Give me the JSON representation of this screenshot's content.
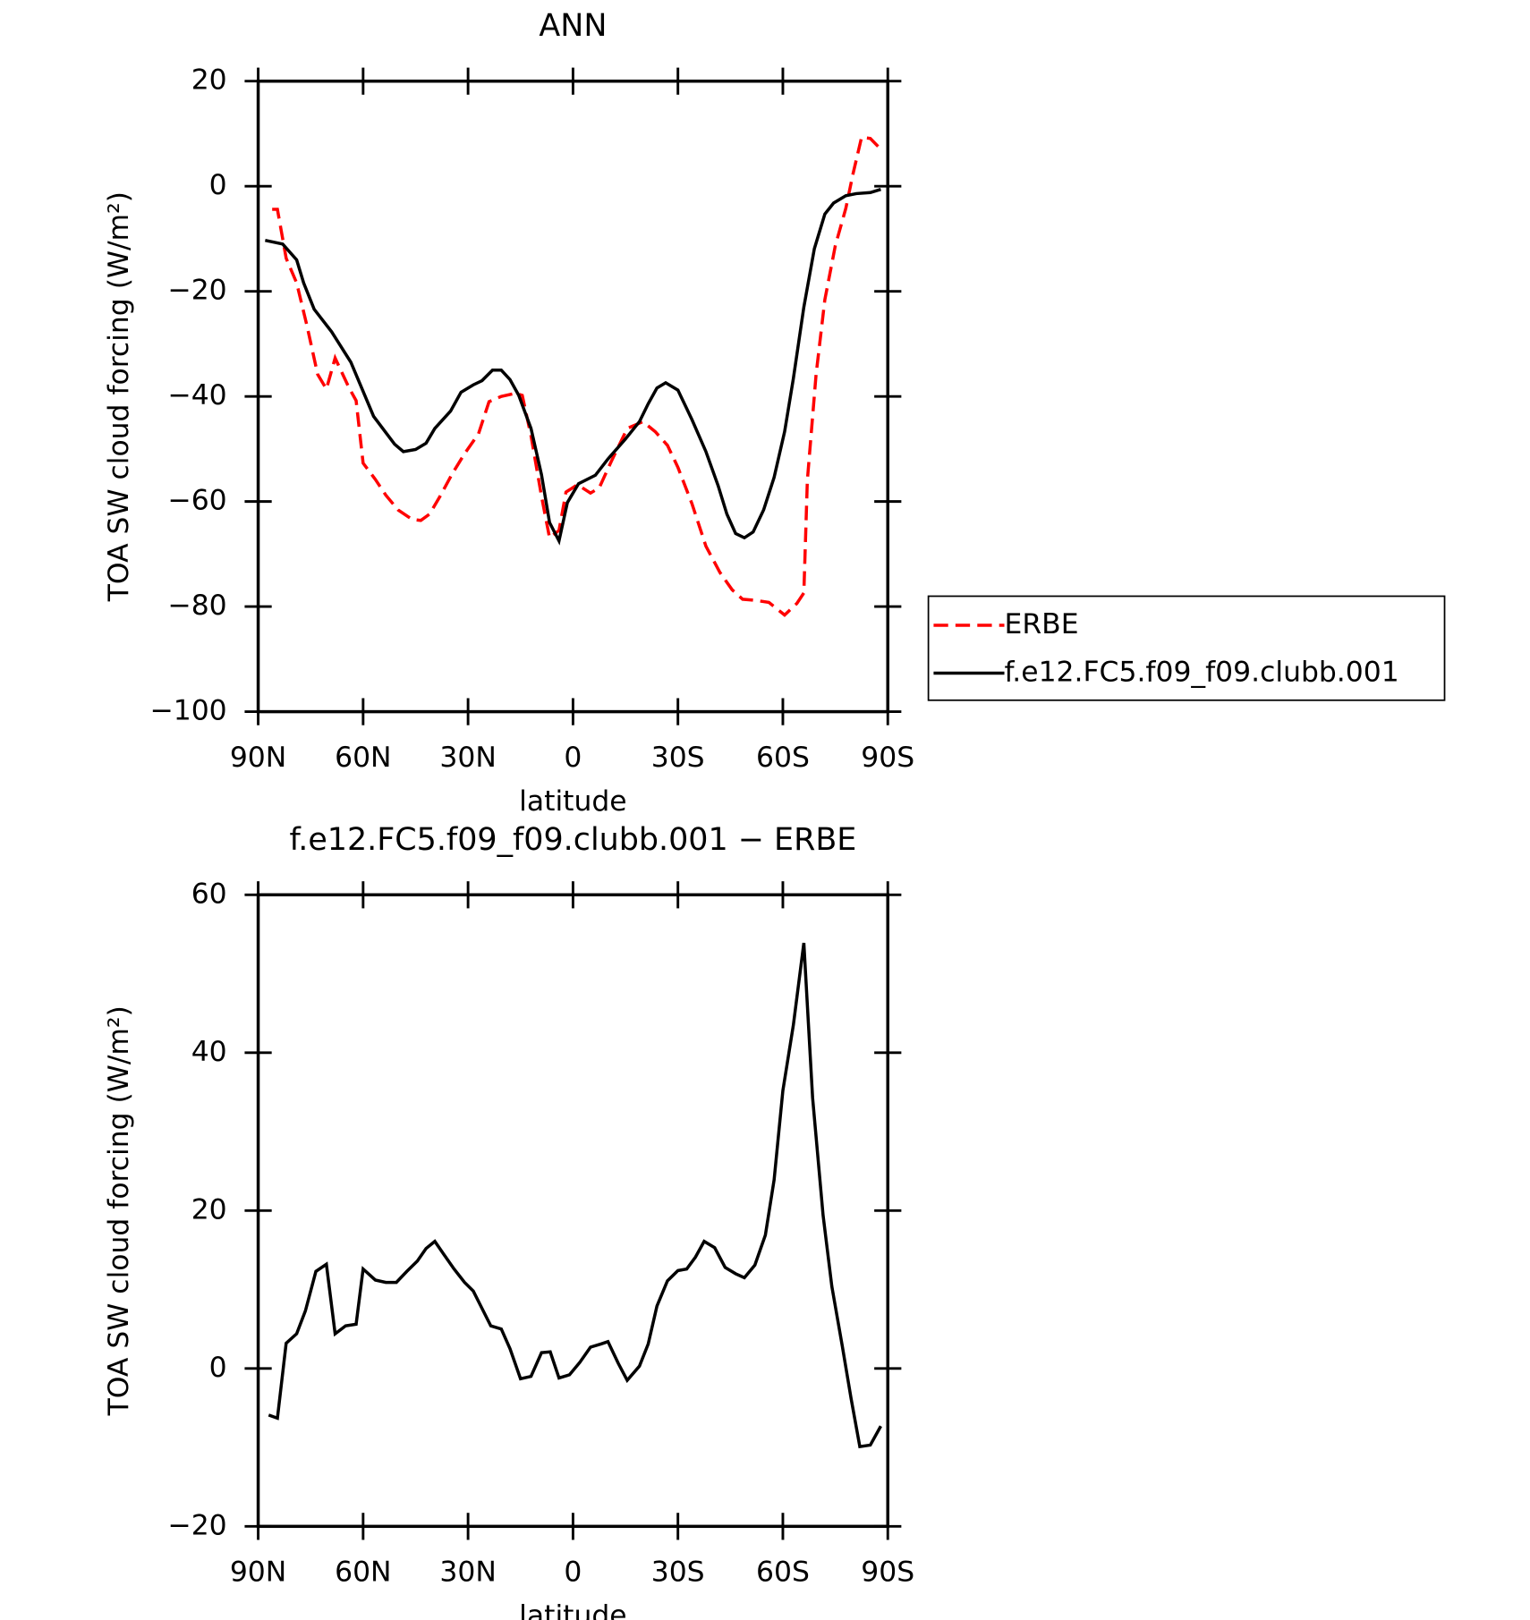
{
  "chart_data": [
    {
      "type": "line",
      "title": "ANN",
      "xlabel": "latitude",
      "ylabel": "TOA SW cloud forcing (W/m²)",
      "xlim": [
        90,
        -90
      ],
      "ylim": [
        20,
        -100
      ],
      "xticks": [
        {
          "value": 90,
          "label": "90N"
        },
        {
          "value": 60,
          "label": "60N"
        },
        {
          "value": 30,
          "label": "30N"
        },
        0,
        {
          "value": -30,
          "label": "30S"
        },
        {
          "value": -60,
          "label": "60S"
        },
        {
          "value": -90,
          "label": "90S"
        }
      ],
      "yticks": [
        20,
        0,
        {
          "value": -20,
          "label": "−20"
        },
        {
          "value": -40,
          "label": "−40"
        },
        {
          "value": -60,
          "label": "−60"
        },
        {
          "value": -80,
          "label": "−80"
        },
        {
          "value": -100,
          "label": "−100"
        }
      ],
      "legend": "right",
      "series": [
        {
          "name": "ERBE",
          "color": "#ff0000",
          "dash": "dashed",
          "x": [
            86,
            84.5,
            82,
            79,
            76,
            73,
            70.5,
            68,
            64,
            62,
            60,
            56.5,
            53.5,
            50,
            46,
            43.5,
            41,
            38,
            34.5,
            31,
            27,
            24,
            20.5,
            16.5,
            14.5,
            12,
            9,
            6.7,
            4,
            2,
            -1.3,
            -5,
            -7.5,
            -11,
            -15.5,
            -20,
            -23.5,
            -27,
            -30,
            -34,
            -38,
            -42,
            -45.5,
            -48.5,
            -52,
            -56,
            -60.5,
            -64,
            -66,
            -67,
            -69.5,
            -72,
            -75,
            -78,
            -80,
            -82.5,
            -85,
            -88.5
          ],
          "values": [
            -4.4,
            -4.4,
            -13.7,
            -18.4,
            -26.7,
            -35.8,
            -38.6,
            -32.7,
            -38.4,
            -40.8,
            -52.7,
            -55.8,
            -58.8,
            -61.6,
            -63.4,
            -63.6,
            -62.4,
            -59,
            -54.7,
            -50.9,
            -47.1,
            -41,
            -40,
            -39.4,
            -39.8,
            -47.5,
            -59,
            -66.9,
            -65.5,
            -58.2,
            -56.8,
            -58.4,
            -57.4,
            -52.3,
            -46.1,
            -44.8,
            -46.7,
            -49.3,
            -53.5,
            -60.4,
            -68.5,
            -73.5,
            -76.8,
            -78.6,
            -78.8,
            -79.2,
            -81.6,
            -79.4,
            -77.4,
            -56,
            -35.8,
            -21.6,
            -11.3,
            -4.2,
            2.2,
            9.3,
            9.1,
            6.7
          ]
        },
        {
          "name": "f.e12.FC5.f09_f09.clubb.001",
          "color": "#000000",
          "dash": "solid",
          "x": [
            88,
            83,
            79,
            77,
            74,
            69,
            63.5,
            57,
            51,
            48.5,
            45,
            42,
            39.5,
            35,
            32,
            28.5,
            26,
            23,
            20.5,
            18,
            15.5,
            12,
            9,
            6.7,
            4,
            1.6,
            -1.6,
            -6.4,
            -10,
            -15,
            -19,
            -21.5,
            -24,
            -26.5,
            -30,
            -34,
            -38,
            -41.5,
            -44,
            -46.5,
            -49,
            -51.5,
            -54.5,
            -57.5,
            -60.5,
            -63,
            -66,
            -69,
            -72,
            -74.5,
            -78,
            -81,
            -85,
            -88
          ],
          "values": [
            -10.3,
            -11,
            -14,
            -18.4,
            -23.4,
            -27.7,
            -33.5,
            -43.8,
            -49.1,
            -50.5,
            -50.1,
            -48.9,
            -46.1,
            -42.8,
            -39.2,
            -37.8,
            -37,
            -35,
            -35,
            -36.8,
            -39.8,
            -46.1,
            -54.9,
            -64,
            -67.5,
            -60.2,
            -56.6,
            -55,
            -51.9,
            -48.1,
            -44.8,
            -41.4,
            -38.4,
            -37.4,
            -38.8,
            -44.4,
            -50.5,
            -57,
            -62.4,
            -66.1,
            -66.9,
            -65.8,
            -61.6,
            -55.4,
            -46.7,
            -36.6,
            -23,
            -11.9,
            -5.3,
            -3.2,
            -1.8,
            -1.4,
            -1.2,
            -0.6
          ]
        }
      ]
    },
    {
      "type": "line",
      "title": "f.e12.FC5.f09_f09.clubb.001 − ERBE",
      "xlabel": "latitude",
      "ylabel": "TOA SW cloud forcing (W/m²)",
      "xlim": [
        90,
        -90
      ],
      "ylim": [
        60,
        -20
      ],
      "xticks": [
        {
          "value": 90,
          "label": "90N"
        },
        {
          "value": 60,
          "label": "60N"
        },
        {
          "value": 30,
          "label": "30N"
        },
        0,
        {
          "value": -30,
          "label": "30S"
        },
        {
          "value": -60,
          "label": "60S"
        },
        {
          "value": -90,
          "label": "90S"
        }
      ],
      "yticks": [
        60,
        40,
        20,
        0,
        {
          "value": -20,
          "label": "−20"
        }
      ],
      "series": [
        {
          "color": "#000000",
          "dash": "solid",
          "x": [
            87,
            84.5,
            82,
            79,
            76.5,
            73.5,
            70.5,
            68,
            65,
            62,
            60,
            56.5,
            53.5,
            50.5,
            47.5,
            44.5,
            42,
            39.5,
            37,
            34,
            31,
            28.5,
            26,
            23.5,
            20.5,
            18,
            15,
            12,
            9,
            6.5,
            4,
            1,
            -2,
            -5,
            -8,
            -10,
            -13,
            -15.5,
            -19,
            -21.5,
            -24,
            -27,
            -30,
            -32.5,
            -35,
            -37.5,
            -40.5,
            -43.5,
            -46.5,
            -49,
            -52,
            -55,
            -57.5,
            -60,
            -63,
            -66,
            -68.5,
            -71.5,
            -74,
            -77,
            -79.5,
            -82,
            -85,
            -88
          ],
          "values": [
            -5.9,
            -6.3,
            3.2,
            4.4,
            7.3,
            12.3,
            13.2,
            4.4,
            5.4,
            5.6,
            12.6,
            11.2,
            10.9,
            10.9,
            12.3,
            13.6,
            15.2,
            16.1,
            14.5,
            12.6,
            10.9,
            9.8,
            7.6,
            5.4,
            5,
            2.5,
            -1.3,
            -1,
            2,
            2.1,
            -1.2,
            -0.8,
            0.8,
            2.7,
            3.1,
            3.4,
            0.6,
            -1.5,
            0.3,
            3.1,
            7.9,
            11.1,
            12.4,
            12.6,
            14.1,
            16.1,
            15.3,
            12.8,
            12,
            11.5,
            13.1,
            16.9,
            23.9,
            35.2,
            43.5,
            53.9,
            34.3,
            19.4,
            10.4,
            2.8,
            -3.8,
            -9.9,
            -9.7,
            -7.3
          ]
        }
      ]
    }
  ]
}
